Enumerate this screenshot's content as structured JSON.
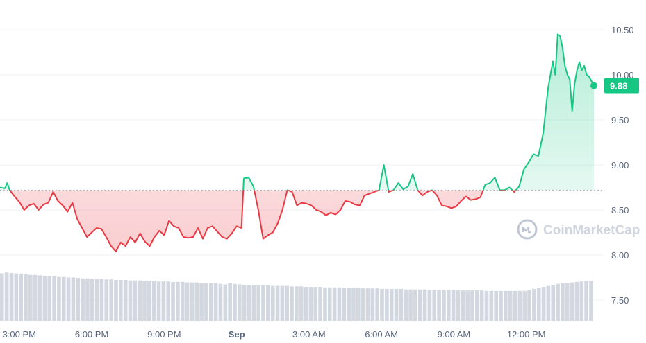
{
  "chart_data": {
    "type": "line",
    "y_ticks": [
      "10.50",
      "10.00",
      "9.50",
      "9.00",
      "8.50",
      "8.00",
      "7.50"
    ],
    "y_tick_values": [
      10.5,
      10.0,
      9.5,
      9.0,
      8.5,
      8.0,
      7.5
    ],
    "ylim": [
      7.27,
      10.83
    ],
    "x_ticks": [
      "3:00 PM",
      "6:00 PM",
      "9:00 PM",
      "Sep",
      "3:00 AM",
      "6:00 AM",
      "9:00 AM",
      "12:00 PM"
    ],
    "x_tick_hours": [
      0,
      3,
      6,
      9,
      12,
      15,
      18,
      21
    ],
    "x_range_hours": [
      -0.8,
      23.8
    ],
    "reference_price": 8.72,
    "current_price": 9.88,
    "current_price_label": "9.88",
    "grid": true,
    "colors": {
      "up": "#16c784",
      "down": "#ea3943",
      "badge": "#16c784",
      "axis_text": "#58667e",
      "volume": "#d3d8e0"
    },
    "price_series": [
      [
        -0.8,
        8.75
      ],
      [
        -0.6,
        8.74
      ],
      [
        -0.5,
        8.8
      ],
      [
        -0.4,
        8.72
      ],
      [
        -0.2,
        8.65
      ],
      [
        0,
        8.59
      ],
      [
        0.2,
        8.5
      ],
      [
        0.4,
        8.55
      ],
      [
        0.6,
        8.57
      ],
      [
        0.8,
        8.5
      ],
      [
        1,
        8.56
      ],
      [
        1.2,
        8.58
      ],
      [
        1.4,
        8.7
      ],
      [
        1.6,
        8.6
      ],
      [
        1.8,
        8.55
      ],
      [
        2,
        8.48
      ],
      [
        2.2,
        8.58
      ],
      [
        2.4,
        8.4
      ],
      [
        2.6,
        8.3
      ],
      [
        2.8,
        8.2
      ],
      [
        3.0,
        8.25
      ],
      [
        3.2,
        8.3
      ],
      [
        3.4,
        8.29
      ],
      [
        3.6,
        8.2
      ],
      [
        3.8,
        8.1
      ],
      [
        4.0,
        8.04
      ],
      [
        4.2,
        8.14
      ],
      [
        4.4,
        8.1
      ],
      [
        4.6,
        8.2
      ],
      [
        4.8,
        8.14
      ],
      [
        5.0,
        8.24
      ],
      [
        5.2,
        8.15
      ],
      [
        5.4,
        8.1
      ],
      [
        5.6,
        8.2
      ],
      [
        5.8,
        8.27
      ],
      [
        6.0,
        8.22
      ],
      [
        6.2,
        8.38
      ],
      [
        6.4,
        8.32
      ],
      [
        6.6,
        8.3
      ],
      [
        6.8,
        8.2
      ],
      [
        7.0,
        8.19
      ],
      [
        7.2,
        8.2
      ],
      [
        7.4,
        8.3
      ],
      [
        7.6,
        8.18
      ],
      [
        7.8,
        8.3
      ],
      [
        8.0,
        8.32
      ],
      [
        8.2,
        8.26
      ],
      [
        8.4,
        8.2
      ],
      [
        8.6,
        8.18
      ],
      [
        8.8,
        8.24
      ],
      [
        9.0,
        8.32
      ],
      [
        9.2,
        8.3
      ],
      [
        9.3,
        8.85
      ],
      [
        9.5,
        8.86
      ],
      [
        9.7,
        8.76
      ],
      [
        9.9,
        8.5
      ],
      [
        10.1,
        8.18
      ],
      [
        10.3,
        8.22
      ],
      [
        10.5,
        8.25
      ],
      [
        10.7,
        8.35
      ],
      [
        10.9,
        8.5
      ],
      [
        11.1,
        8.72
      ],
      [
        11.3,
        8.7
      ],
      [
        11.5,
        8.55
      ],
      [
        11.7,
        8.58
      ],
      [
        11.9,
        8.57
      ],
      [
        12.1,
        8.55
      ],
      [
        12.3,
        8.5
      ],
      [
        12.5,
        8.48
      ],
      [
        12.7,
        8.44
      ],
      [
        12.9,
        8.47
      ],
      [
        13.1,
        8.45
      ],
      [
        13.3,
        8.5
      ],
      [
        13.5,
        8.6
      ],
      [
        13.7,
        8.59
      ],
      [
        13.9,
        8.56
      ],
      [
        14.1,
        8.55
      ],
      [
        14.3,
        8.66
      ],
      [
        14.5,
        8.68
      ],
      [
        14.7,
        8.7
      ],
      [
        14.9,
        8.72
      ],
      [
        15.1,
        9.0
      ],
      [
        15.3,
        8.7
      ],
      [
        15.5,
        8.72
      ],
      [
        15.7,
        8.8
      ],
      [
        15.9,
        8.73
      ],
      [
        16.1,
        8.76
      ],
      [
        16.3,
        8.9
      ],
      [
        16.5,
        8.72
      ],
      [
        16.7,
        8.66
      ],
      [
        16.9,
        8.7
      ],
      [
        17.1,
        8.72
      ],
      [
        17.3,
        8.66
      ],
      [
        17.5,
        8.55
      ],
      [
        17.7,
        8.54
      ],
      [
        17.9,
        8.52
      ],
      [
        18.1,
        8.54
      ],
      [
        18.3,
        8.6
      ],
      [
        18.5,
        8.65
      ],
      [
        18.7,
        8.61
      ],
      [
        18.9,
        8.62
      ],
      [
        19.1,
        8.64
      ],
      [
        19.3,
        8.78
      ],
      [
        19.5,
        8.8
      ],
      [
        19.7,
        8.86
      ],
      [
        19.9,
        8.72
      ],
      [
        20.1,
        8.72
      ],
      [
        20.3,
        8.75
      ],
      [
        20.5,
        8.7
      ],
      [
        20.7,
        8.76
      ],
      [
        20.9,
        8.95
      ],
      [
        21.1,
        9.03
      ],
      [
        21.3,
        9.12
      ],
      [
        21.5,
        9.1
      ],
      [
        21.7,
        9.35
      ],
      [
        21.9,
        9.85
      ],
      [
        22.1,
        10.15
      ],
      [
        22.2,
        10.0
      ],
      [
        22.3,
        10.45
      ],
      [
        22.4,
        10.43
      ],
      [
        22.5,
        10.3
      ],
      [
        22.6,
        10.1
      ],
      [
        22.7,
        10.0
      ],
      [
        22.8,
        9.95
      ],
      [
        22.9,
        9.6
      ],
      [
        23.0,
        9.9
      ],
      [
        23.1,
        10.05
      ],
      [
        23.2,
        10.14
      ],
      [
        23.3,
        10.05
      ],
      [
        23.4,
        10.1
      ],
      [
        23.5,
        10.0
      ],
      [
        23.6,
        9.98
      ],
      [
        23.8,
        9.88
      ]
    ],
    "volume_series": [
      0.95,
      0.97,
      0.96,
      0.95,
      0.94,
      0.93,
      0.92,
      0.92,
      0.91,
      0.9,
      0.9,
      0.89,
      0.88,
      0.88,
      0.87,
      0.87,
      0.86,
      0.85,
      0.85,
      0.84,
      0.84,
      0.84,
      0.83,
      0.83,
      0.82,
      0.82,
      0.82,
      0.81,
      0.81,
      0.81,
      0.8,
      0.8,
      0.8,
      0.79,
      0.79,
      0.79,
      0.78,
      0.78,
      0.78,
      0.77,
      0.77,
      0.77,
      0.76,
      0.76,
      0.76,
      0.75,
      0.74,
      0.73,
      0.75,
      0.74,
      0.73,
      0.72,
      0.72,
      0.72,
      0.71,
      0.71,
      0.71,
      0.7,
      0.7,
      0.7,
      0.7,
      0.69,
      0.69,
      0.69,
      0.68,
      0.68,
      0.68,
      0.68,
      0.67,
      0.67,
      0.67,
      0.67,
      0.66,
      0.66,
      0.66,
      0.66,
      0.65,
      0.65,
      0.65,
      0.65,
      0.64,
      0.64,
      0.64,
      0.64,
      0.64,
      0.63,
      0.63,
      0.63,
      0.63,
      0.63,
      0.62,
      0.62,
      0.62,
      0.62,
      0.62,
      0.62,
      0.61,
      0.61,
      0.61,
      0.61,
      0.61,
      0.61,
      0.6,
      0.6,
      0.6,
      0.6,
      0.6,
      0.6,
      0.6,
      0.6,
      0.6,
      0.62,
      0.64,
      0.66,
      0.68,
      0.7,
      0.72,
      0.74,
      0.75,
      0.76,
      0.77,
      0.78,
      0.79,
      0.8,
      0.8
    ]
  },
  "watermark": {
    "text": "CoinMarketCap",
    "icon": "coinmarketcap-logo-icon"
  }
}
